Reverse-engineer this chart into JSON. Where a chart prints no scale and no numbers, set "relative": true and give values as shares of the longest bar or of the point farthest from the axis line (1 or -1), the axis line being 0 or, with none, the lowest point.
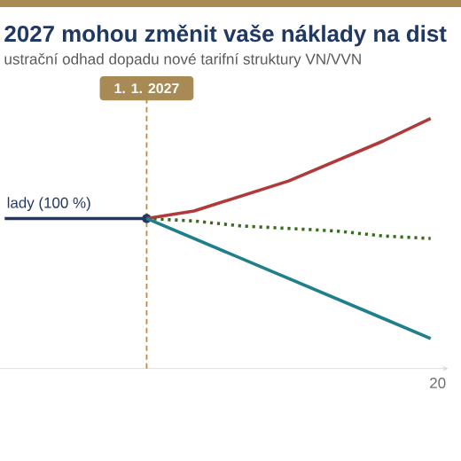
{
  "chart_data": {
    "type": "line",
    "title": "2027 mohou změnit vaše náklady na dist",
    "subtitle": "ustrační odhad dopadu nové tarifní struktury VN/VVN",
    "relative": true,
    "legend": false,
    "categories": [
      null,
      null,
      null,
      null,
      null,
      null,
      null,
      null,
      null,
      null
    ],
    "annotations": [
      "1. 1. 2027",
      "20"
    ],
    "series": [
      {
        "name": "lady (100 %)",
        "color": "#1f3864",
        "values": [
          0.6,
          0.6,
          0.6,
          0.6,
          null,
          null,
          null,
          null,
          null,
          null
        ],
        "line_style": "solid"
      },
      {
        "color": "#b03a3a",
        "values": [
          null,
          null,
          null,
          0.6,
          0.63,
          0.69,
          0.75,
          0.83,
          0.91,
          1.0
        ],
        "line_style": "solid"
      },
      {
        "color": "#3d6b1e",
        "values": [
          null,
          null,
          null,
          0.6,
          0.59,
          0.57,
          0.56,
          0.55,
          0.53,
          0.52
        ],
        "line_style": "dotted"
      },
      {
        "color": "#1f7f8c",
        "values": [
          null,
          null,
          null,
          0.6,
          0.52,
          0.44,
          0.36,
          0.28,
          0.2,
          0.12
        ],
        "line_style": "solid"
      }
    ]
  }
}
